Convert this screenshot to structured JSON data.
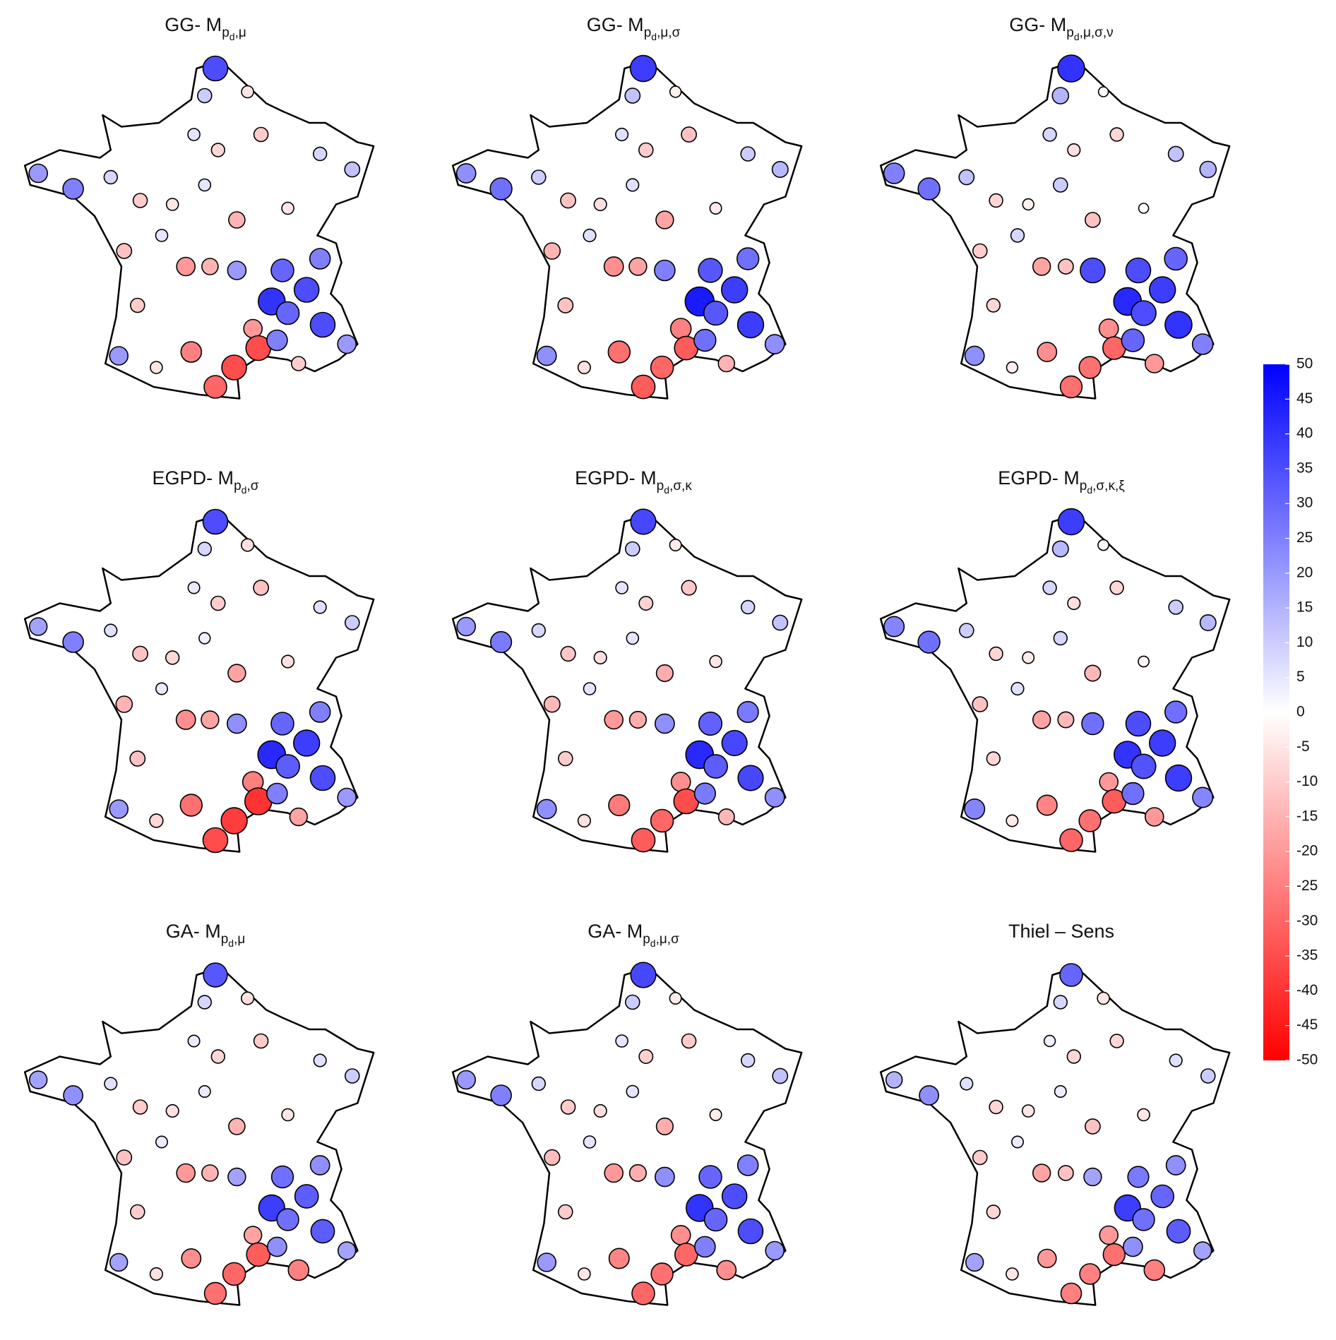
{
  "stations": {
    "lon": [
      2.3,
      1.9,
      3.5,
      2.4,
      1.5,
      4.0,
      6.2,
      7.4,
      5.0,
      -4.3,
      -3.0,
      -1.6,
      -0.5,
      0.7,
      1.9,
      3.1,
      -1.1,
      0.3,
      1.2,
      2.1,
      3.1,
      4.8,
      5.7,
      6.2,
      4.4,
      5.0,
      6.3,
      7.2,
      5.4,
      3.7,
      3.9,
      3.0,
      2.3,
      1.4,
      -0.6,
      -1.3,
      0.1,
      4.6
    ],
    "lat": [
      50.9,
      50.2,
      50.3,
      48.8,
      49.2,
      49.2,
      48.7,
      48.3,
      47.3,
      48.2,
      47.8,
      48.1,
      47.5,
      47.4,
      47.9,
      47.0,
      46.2,
      46.6,
      45.8,
      45.8,
      45.7,
      45.7,
      45.2,
      46.0,
      44.9,
      44.6,
      44.3,
      43.8,
      43.3,
      44.2,
      43.7,
      43.2,
      42.7,
      43.6,
      44.8,
      43.5,
      43.2,
      43.9
    ]
  },
  "chart_data": [
    {
      "type": "scatter-map",
      "title": {
        "text": "GG- M",
        "sub": "p",
        "subsub": "d",
        "sub_rest": ",μ"
      },
      "values": [
        35,
        10,
        -5,
        -8,
        5,
        -10,
        8,
        12,
        -5,
        20,
        25,
        8,
        -10,
        -5,
        5,
        -15,
        -12,
        5,
        -20,
        -15,
        20,
        30,
        35,
        25,
        40,
        30,
        35,
        20,
        -10,
        -20,
        -35,
        -35,
        -30,
        -25,
        -10,
        20,
        -5,
        25
      ]
    },
    {
      "type": "scatter-map",
      "title": {
        "text": "GG- M",
        "sub": "p",
        "subsub": "d",
        "sub_rest": ",μ,σ"
      },
      "values": [
        38,
        12,
        -3,
        -10,
        6,
        -12,
        10,
        14,
        -4,
        22,
        28,
        10,
        -12,
        -6,
        6,
        -18,
        -15,
        6,
        -22,
        -18,
        25,
        33,
        38,
        28,
        45,
        33,
        38,
        22,
        -15,
        -25,
        -32,
        -30,
        -32,
        -28,
        -12,
        22,
        -6,
        28
      ]
    },
    {
      "type": "scatter-map",
      "title": {
        "text": "GG- M",
        "sub": "p",
        "subsub": "d",
        "sub_rest": ",μ,σ,ν"
      },
      "values": [
        40,
        15,
        0,
        -6,
        8,
        -8,
        12,
        15,
        0,
        25,
        28,
        12,
        -8,
        -3,
        10,
        -12,
        -10,
        8,
        -18,
        -12,
        35,
        35,
        38,
        30,
        42,
        35,
        40,
        25,
        -20,
        -22,
        -30,
        -28,
        -28,
        -22,
        -8,
        22,
        -3,
        30
      ]
    },
    {
      "type": "scatter-map",
      "title": {
        "text": "EGPD- M",
        "sub": "p",
        "subsub": "d",
        "sub_rest": ",σ"
      },
      "values": [
        35,
        8,
        -6,
        -10,
        4,
        -12,
        6,
        10,
        -6,
        18,
        25,
        6,
        -12,
        -8,
        3,
        -18,
        -15,
        4,
        -22,
        -18,
        22,
        30,
        38,
        25,
        42,
        32,
        35,
        20,
        -18,
        -25,
        -40,
        -38,
        -35,
        -28,
        -12,
        20,
        -8,
        25
      ]
    },
    {
      "type": "scatter-map",
      "title": {
        "text": "EGPD- M",
        "sub": "p",
        "subsub": "d",
        "sub_rest": ",σ,κ"
      },
      "values": [
        36,
        10,
        -4,
        -9,
        5,
        -11,
        8,
        12,
        -5,
        20,
        26,
        8,
        -11,
        -6,
        5,
        -16,
        -14,
        5,
        -20,
        -16,
        22,
        31,
        36,
        26,
        42,
        32,
        36,
        22,
        -14,
        -22,
        -35,
        -30,
        -32,
        -26,
        -10,
        22,
        -6,
        26
      ]
    },
    {
      "type": "scatter-map",
      "title": {
        "text": "EGPD- M",
        "sub": "p",
        "subsub": "d",
        "sub_rest": ",σ,κ,ξ"
      },
      "values": [
        38,
        14,
        -2,
        -6,
        8,
        -8,
        10,
        14,
        -2,
        24,
        28,
        10,
        -8,
        -4,
        8,
        -14,
        -12,
        6,
        -18,
        -14,
        28,
        35,
        38,
        28,
        40,
        34,
        38,
        24,
        -20,
        -20,
        -32,
        -28,
        -30,
        -24,
        -8,
        24,
        -4,
        28
      ]
    },
    {
      "type": "scatter-map",
      "title": {
        "text": "GA- M",
        "sub": "p",
        "subsub": "d",
        "sub_rest": ",μ"
      },
      "values": [
        33,
        8,
        -6,
        -8,
        4,
        -10,
        6,
        10,
        -5,
        18,
        22,
        6,
        -10,
        -6,
        4,
        -15,
        -12,
        4,
        -20,
        -15,
        18,
        28,
        32,
        22,
        38,
        28,
        32,
        18,
        -25,
        -18,
        -32,
        -30,
        -28,
        -22,
        -10,
        18,
        -6,
        22
      ]
    },
    {
      "type": "scatter-map",
      "title": {
        "text": "GA- M",
        "sub": "p",
        "subsub": "d",
        "sub_rest": ",μ,σ"
      },
      "values": [
        36,
        10,
        -4,
        -9,
        5,
        -10,
        8,
        12,
        -4,
        20,
        25,
        8,
        -10,
        -6,
        5,
        -16,
        -13,
        5,
        -20,
        -16,
        22,
        30,
        35,
        25,
        40,
        30,
        35,
        20,
        -22,
        -22,
        -30,
        -28,
        -30,
        -24,
        -10,
        20,
        -5,
        25
      ]
    },
    {
      "type": "scatter-map",
      "title": {
        "text": "Thiel – Sens"
      },
      "values": [
        30,
        8,
        -5,
        -8,
        3,
        -8,
        6,
        10,
        -5,
        15,
        22,
        6,
        -8,
        -5,
        4,
        -12,
        -10,
        4,
        -18,
        -12,
        18,
        26,
        30,
        22,
        38,
        28,
        32,
        18,
        -25,
        -20,
        -28,
        -25,
        -25,
        -20,
        -8,
        18,
        -5,
        22
      ]
    }
  ],
  "colorbar": {
    "lim": [
      -50,
      50
    ],
    "colors": [
      "#ff0000",
      "#ffffff",
      "#0000ff"
    ],
    "ticks": [
      -50,
      -45,
      -40,
      -35,
      -30,
      -25,
      -20,
      -15,
      -10,
      -5,
      0,
      5,
      10,
      15,
      20,
      25,
      30,
      35,
      40,
      45,
      50
    ]
  }
}
